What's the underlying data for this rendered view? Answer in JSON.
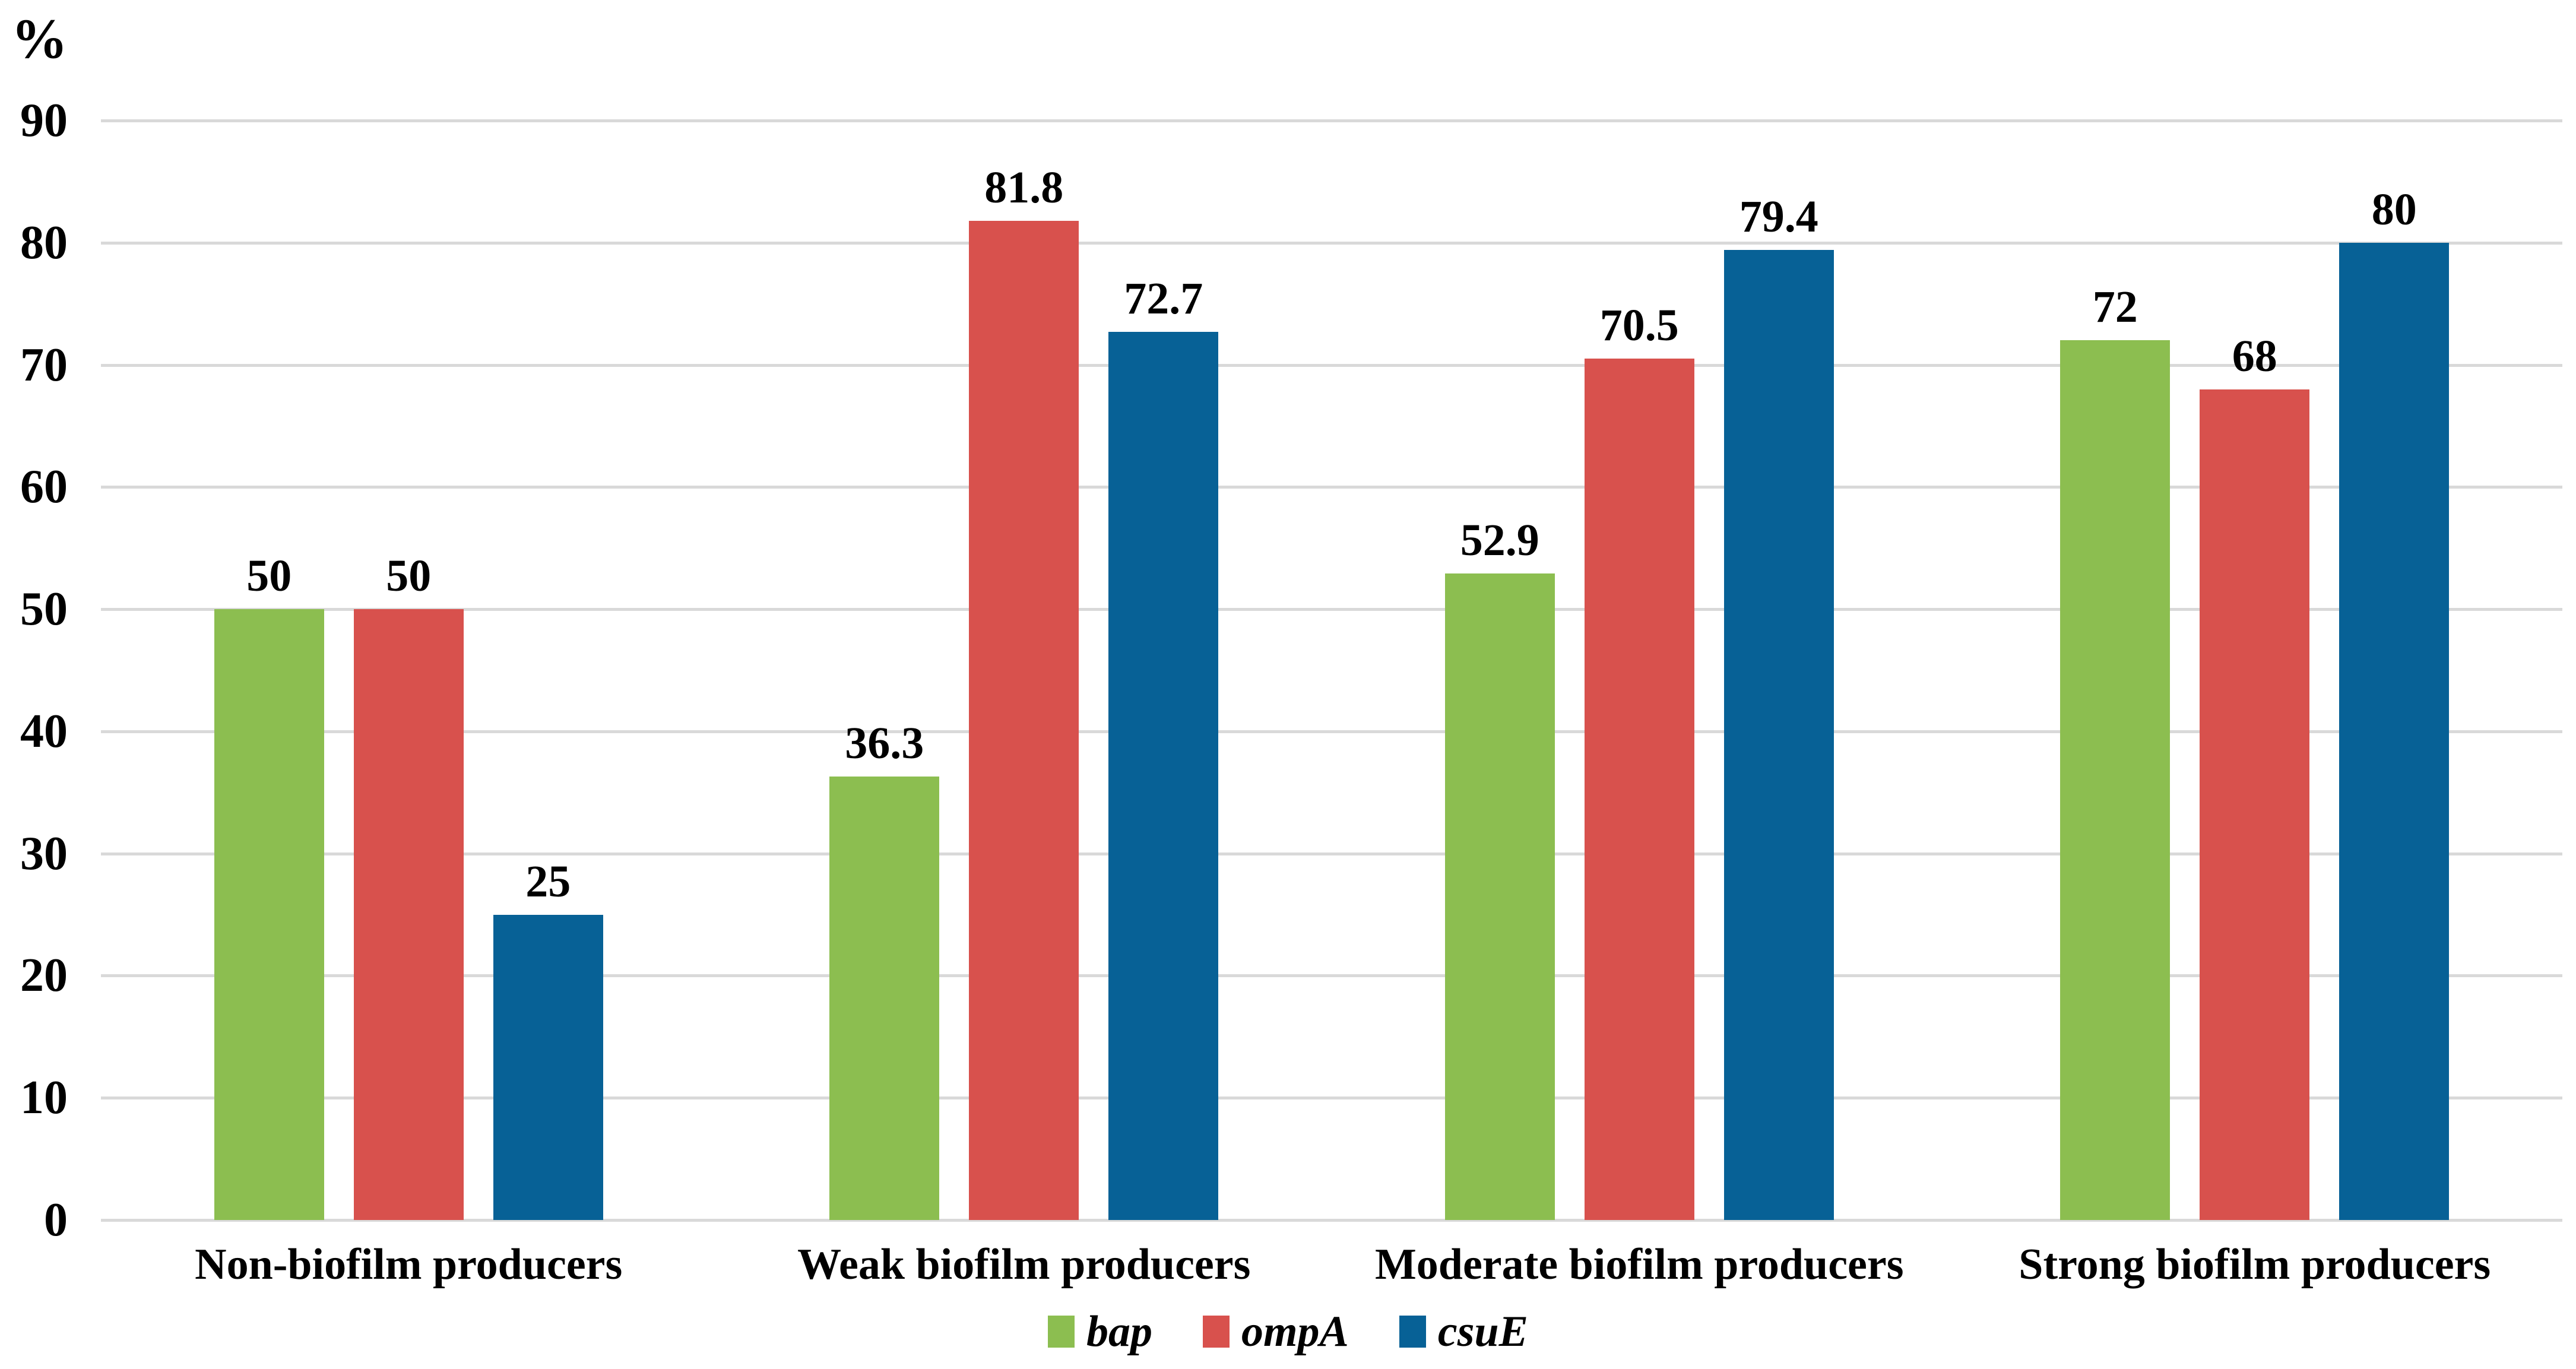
{
  "chart_data": {
    "type": "bar",
    "title": "",
    "ylabel": "%",
    "xlabel": "",
    "categories": [
      "Non-biofilm producers",
      "Weak biofilm producers",
      "Moderate biofilm producers",
      "Strong biofilm producers"
    ],
    "series": [
      {
        "name": "bap",
        "color": "#8CBE50",
        "values": [
          50,
          36.3,
          52.9,
          72
        ]
      },
      {
        "name": "ompA",
        "color": "#D8514D",
        "values": [
          50,
          81.8,
          70.5,
          68
        ]
      },
      {
        "name": "csuE",
        "color": "#076196",
        "values": [
          25,
          72.7,
          79.4,
          80
        ]
      }
    ],
    "y_ticks": [
      90,
      80,
      70,
      60,
      50,
      40,
      30,
      20,
      10,
      0
    ],
    "ylim": [
      0,
      90
    ],
    "grid": "horizontal",
    "gridline_color": "#D9D9D9",
    "text_color": "#000000",
    "background_color": "#FFFFFF",
    "legend_position": "bottom",
    "data_labels_shown": true
  }
}
